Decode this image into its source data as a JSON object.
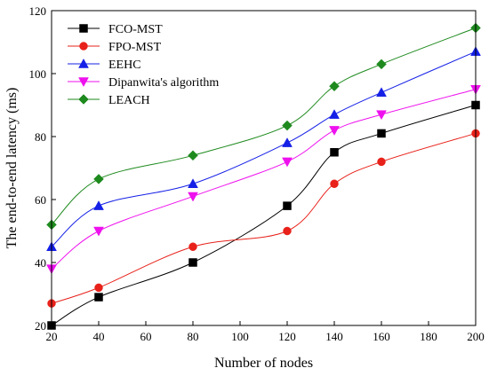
{
  "chart_data": {
    "type": "line",
    "xlabel": "Number of nodes",
    "ylabel": "The end-to-end latency (ms)",
    "xlim": [
      20,
      200
    ],
    "ylim": [
      20,
      120
    ],
    "xticks": [
      20,
      40,
      60,
      80,
      100,
      120,
      140,
      160,
      180,
      200
    ],
    "yticks": [
      20,
      40,
      60,
      80,
      100,
      120
    ],
    "x": [
      20,
      40,
      80,
      120,
      140,
      160,
      200
    ],
    "grid": false,
    "legend_position": "top-left",
    "series": [
      {
        "name": "FCO-MST",
        "marker": "square",
        "color": "#000000",
        "values": [
          20,
          29,
          40,
          58,
          75,
          81,
          90
        ]
      },
      {
        "name": "FPO-MST",
        "marker": "circle",
        "color": "#e8211a",
        "values": [
          27,
          32,
          45,
          50,
          65,
          72,
          81
        ]
      },
      {
        "name": "EEHC",
        "marker": "triangle-up",
        "color": "#1520e6",
        "values": [
          45,
          58,
          65,
          78,
          87,
          94,
          107
        ]
      },
      {
        "name": "Dipanwita's algorithm",
        "marker": "triangle-down",
        "color": "#ee11ee",
        "values": [
          38,
          50,
          61,
          72,
          82,
          87,
          95
        ]
      },
      {
        "name": "LEACH",
        "marker": "diamond",
        "color": "#1e8a1e",
        "values": [
          52,
          66.5,
          74,
          83.5,
          96,
          103,
          114.5
        ]
      }
    ]
  }
}
